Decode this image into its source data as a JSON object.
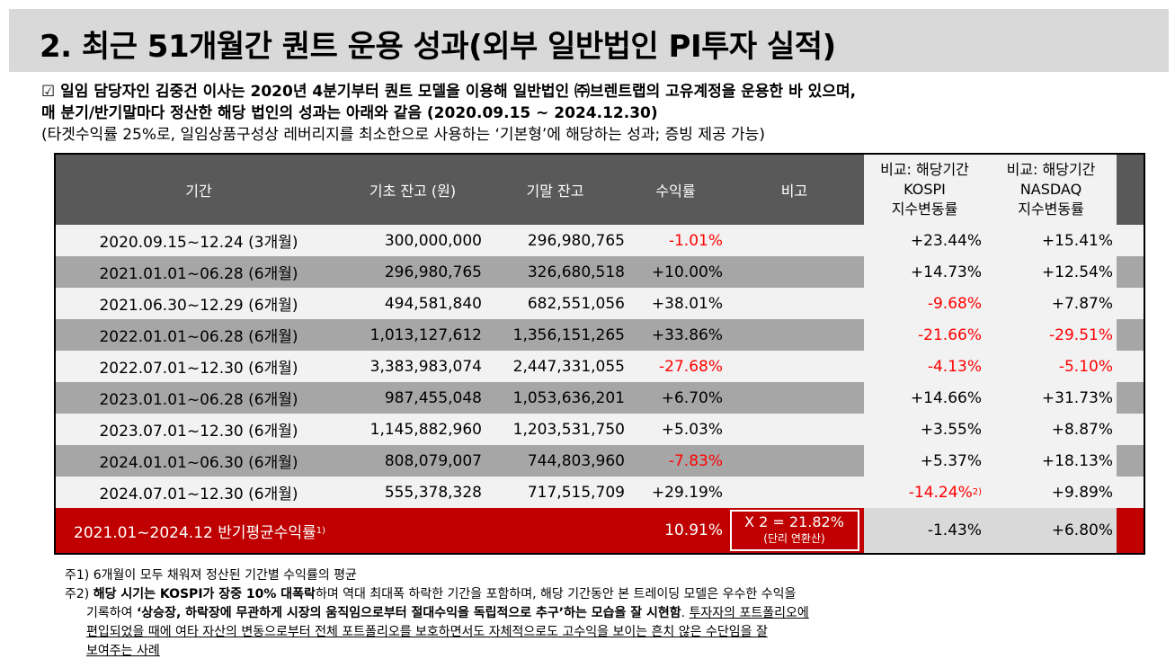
{
  "title": "2. 최근 51개월간 퀀트 운용 성과(외부 일반법인 PI투자 실적)",
  "intro": {
    "line1": "☑ 일임 담당자인 김중건 이사는 2020년 4분기부터 퀀트 모델을 이용해 일반법인 ㈜브렌트랩의 고유계정을 운용한 바 있으며,",
    "line2": "매 분기/반기말마다 정산한 해당 법인의 성과는 아래와 같음 (2020.09.15 ~ 2024.12.30)",
    "line3": "(타겟수익률 25%로, 일임상품구성상 레버리지를 최소한으로 사용하는 ‘기본형’에 해당하는 성과; 증빙 제공 가능)"
  },
  "table": {
    "headers": {
      "period": "기간",
      "begin": "기초 잔고 (원)",
      "end": "기말 잔고",
      "ret": "수익률",
      "note": "비고",
      "kospi": [
        "비교: 해당기간",
        "KOSPI",
        "지수변동률"
      ],
      "nasdaq": [
        "비교: 해당기간",
        "NASDAQ",
        "지수변동률"
      ]
    },
    "rows": [
      {
        "period": "2020.09.15~12.24 (3개월)",
        "begin": "300,000,000",
        "end": "296,980,765",
        "ret": "-1.01%",
        "kospi": "+23.44%",
        "nasdaq": "+15.41%",
        "kospi_sup": ""
      },
      {
        "period": "2021.01.01~06.28 (6개월)",
        "begin": "296,980,765",
        "end": "326,680,518",
        "ret": "+10.00%",
        "kospi": "+14.73%",
        "nasdaq": "+12.54%",
        "kospi_sup": ""
      },
      {
        "period": "2021.06.30~12.29 (6개월)",
        "begin": "494,581,840",
        "end": "682,551,056",
        "ret": "+38.01%",
        "kospi": "-9.68%",
        "nasdaq": "+7.87%",
        "kospi_sup": ""
      },
      {
        "period": "2022.01.01~06.28 (6개월)",
        "begin": "1,013,127,612",
        "end": "1,356,151,265",
        "ret": "+33.86%",
        "kospi": "-21.66%",
        "nasdaq": "-29.51%",
        "kospi_sup": ""
      },
      {
        "period": "2022.07.01~12.30 (6개월)",
        "begin": "3,383,983,074",
        "end": "2,447,331,055",
        "ret": "-27.68%",
        "kospi": "-4.13%",
        "nasdaq": "-5.10%",
        "kospi_sup": ""
      },
      {
        "period": "2023.01.01~06.28 (6개월)",
        "begin": "987,455,048",
        "end": "1,053,636,201",
        "ret": "+6.70%",
        "kospi": "+14.66%",
        "nasdaq": "+31.73%",
        "kospi_sup": ""
      },
      {
        "period": "2023.07.01~12.30 (6개월)",
        "begin": "1,145,882,960",
        "end": "1,203,531,750",
        "ret": "+5.03%",
        "kospi": "+3.55%",
        "nasdaq": "+8.87%",
        "kospi_sup": ""
      },
      {
        "period": "2024.01.01~06.30 (6개월)",
        "begin": "808,079,007",
        "end": "744,803,960",
        "ret": "-7.83%",
        "kospi": "+5.37%",
        "nasdaq": "+18.13%",
        "kospi_sup": ""
      },
      {
        "period": "2024.07.01~12.30 (6개월)",
        "begin": "555,378,328",
        "end": "717,515,709",
        "ret": "+29.19%",
        "kospi": "-14.24%",
        "nasdaq": "+9.89%",
        "kospi_sup": "2)"
      }
    ],
    "summary": {
      "label": "2021.01~2024.12 반기평균수익률",
      "label_sup": "1)",
      "ret": "10.91%",
      "note_line1": "X 2 = 21.82%",
      "note_line2": "(단리 연환산)",
      "kospi": "-1.43%",
      "nasdaq": "+6.80%"
    }
  },
  "footnotes": {
    "n1": "주1) 6개월이 모두 채워져 정산된 기간별 수익률의 평균",
    "n2_prefix": "주2) ",
    "n2_bold1": "해당 시기는 KOSPI가 장중 10% 대폭락",
    "n2_text1": "하며 역대 최대폭 하락한 기간을 포함하며, 해당 기간동안 본 트레이딩 모델은 우수한 수익을",
    "n2_text2": "기록하여 ",
    "n2_bold2": "‘상승장, 하락장에 무관하게 시장의 움직임으로부터 절대수익을 독립적으로 추구’하는 모습을 잘 시현함",
    "n2_text3": ". ",
    "n2_u1": "투자자의 포트폴리오에",
    "n2_u2": "편입되었을 때에 여타 자산의 변동으로부터 전체 포트폴리오를 보호하면서도 자체적으로도 고수익을 보이는 흔치 않은 수단임을 잘",
    "n2_u3": "보여주는 사례"
  },
  "colors": {
    "header_bg": "#595959",
    "accent_red": "#c00000",
    "neg_red": "#ff0000",
    "alt_row": "#a6a6a6"
  }
}
